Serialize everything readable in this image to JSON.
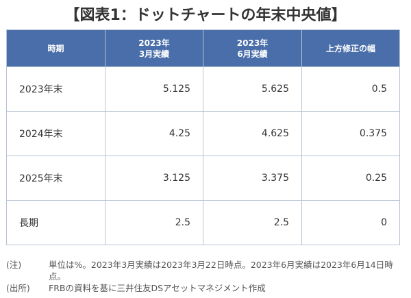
{
  "title": "【図表1：ドットチャートの年末中央値】",
  "table": {
    "headers": [
      "時期",
      "2023年\n3月実績",
      "2023年\n6月実績",
      "上方修正の幅"
    ],
    "rows": [
      [
        "2023年末",
        "5.125",
        "5.625",
        "0.5"
      ],
      [
        "2024年末",
        "4.25",
        "4.625",
        "0.375"
      ],
      [
        "2025年末",
        "3.125",
        "3.375",
        "0.25"
      ],
      [
        "長期",
        "2.5",
        "2.5",
        "0"
      ]
    ]
  },
  "notes": [
    {
      "tag": "(注)",
      "text": "単位は%。2023年3月実績は2023年3月22日時点。2023年6月実績は2023年6月14日時点。"
    },
    {
      "tag": "(出所)",
      "text": "FRBの資料を基に三井住友DSアセットマネジメント作成"
    }
  ],
  "colors": {
    "header_bg": "#4a6ea9",
    "header_text": "#ffffff",
    "border": "#b7c3d2"
  }
}
